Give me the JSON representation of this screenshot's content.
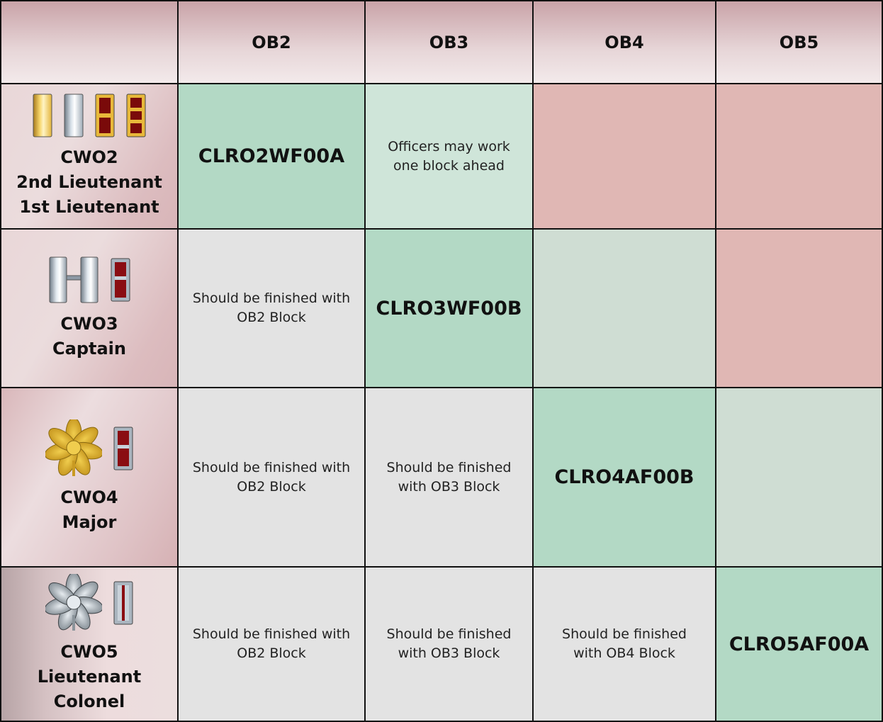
{
  "columns": [
    "",
    "OB2",
    "OB3",
    "OB4",
    "OB5"
  ],
  "rows": [
    {
      "rank_lines": [
        "CWO2",
        "2nd Lieutenant",
        "1st Lieutenant"
      ],
      "insignia": [
        "gold-bar-icon",
        "silver-bar-icon",
        "cwo2-bar-icon",
        "cwo3-bar-icon"
      ],
      "cells": [
        {
          "type": "code",
          "text": "CLRO2WF00A"
        },
        {
          "type": "ahead",
          "text": "Officers may work one block  ahead"
        },
        {
          "type": "red",
          "text": ""
        },
        {
          "type": "red",
          "text": ""
        }
      ]
    },
    {
      "rank_lines": [
        "CWO3",
        "Captain"
      ],
      "insignia": [
        "captain-bars-icon",
        "cwo4-bar-icon"
      ],
      "cells": [
        {
          "type": "gray",
          "text": "Should be finished with OB2 Block"
        },
        {
          "type": "code",
          "text": "CLRO3WF00B"
        },
        {
          "type": "empty-green",
          "text": ""
        },
        {
          "type": "red",
          "text": ""
        }
      ]
    },
    {
      "rank_lines": [
        "CWO4",
        "Major"
      ],
      "insignia": [
        "gold-oak-leaf-icon",
        "cwo4-bar-icon"
      ],
      "cells": [
        {
          "type": "gray",
          "text": "Should be finished with OB2 Block"
        },
        {
          "type": "gray",
          "text": "Should be finished with OB3 Block"
        },
        {
          "type": "code",
          "text": "CLRO4AF00B"
        },
        {
          "type": "empty-green",
          "text": ""
        }
      ]
    },
    {
      "rank_lines": [
        "CWO5",
        "Lieutenant",
        "Colonel"
      ],
      "insignia": [
        "silver-oak-leaf-icon",
        "cwo5-bar-icon"
      ],
      "cells": [
        {
          "type": "gray",
          "text": "Should be finished with OB2 Block"
        },
        {
          "type": "gray",
          "text": "Should be finished with OB3 Block"
        },
        {
          "type": "gray",
          "text": "Should be finished with OB4 Block"
        },
        {
          "type": "code",
          "text": "CLRO5AF00A"
        }
      ]
    }
  ]
}
